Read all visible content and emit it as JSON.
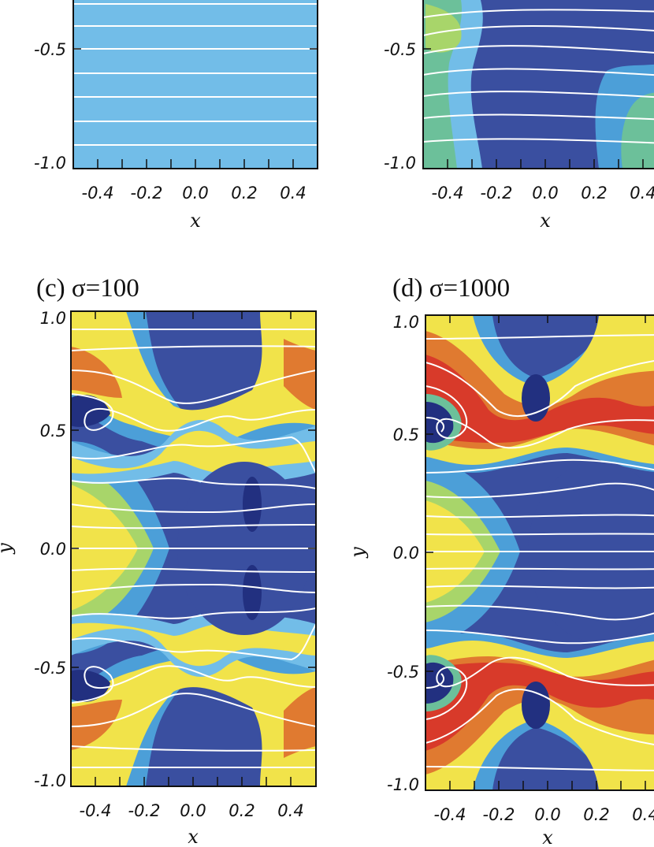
{
  "colors": {
    "field_scale": [
      "#3a4fa0",
      "#223080",
      "#4c9fd8",
      "#72bde8",
      "#6cc09a",
      "#a8d56a",
      "#f1e34a",
      "#f2b335",
      "#e07a30",
      "#d83a2a",
      "#b81c1c"
    ],
    "field_lines": "#ffffff",
    "frame": "#111111"
  },
  "chart_data": [
    {
      "type": "heatmap",
      "title": "",
      "xlabel": "x",
      "ylabel": "",
      "xlim": [
        -0.5,
        0.5
      ],
      "ylim": [
        -1.0,
        1.0
      ],
      "x_ticks": [
        "-0.4",
        "-0.2",
        "0.0",
        "0.2",
        "0.4"
      ],
      "y_ticks": [
        "-0.5",
        "-1.0"
      ],
      "field_lines": "horizontal, unperturbed",
      "field_level": "uniform"
    },
    {
      "type": "heatmap",
      "title": "",
      "xlabel": "x",
      "ylabel": "",
      "xlim": [
        -0.5,
        0.5
      ],
      "ylim": [
        -1.0,
        1.0
      ],
      "x_ticks": [
        "-0.4",
        "-0.2",
        "0.0",
        "0.2",
        "0.4"
      ],
      "y_ticks": [
        "-0.5",
        "-1.0"
      ],
      "field_lines": "gently perturbed"
    },
    {
      "type": "heatmap",
      "title": "(c) σ=100",
      "xlabel": "x",
      "ylabel": "y",
      "xlim": [
        -0.5,
        0.5
      ],
      "ylim": [
        -1.0,
        1.0
      ],
      "x_ticks": [
        "-0.4",
        "-0.2",
        "0.0",
        "0.2",
        "0.4"
      ],
      "y_ticks": [
        "1.0",
        "0.5",
        "0.0",
        "-0.5",
        "-1.0"
      ],
      "field_lines": "rolled-up vortices"
    },
    {
      "type": "heatmap",
      "title": "(d) σ=1000",
      "xlabel": "x",
      "ylabel": "y",
      "xlim": [
        -0.5,
        0.5
      ],
      "ylim": [
        -1.0,
        1.0
      ],
      "x_ticks": [
        "-0.4",
        "-0.2",
        "0.0",
        "0.2",
        "0.4"
      ],
      "y_ticks": [
        "1.0",
        "0.5",
        "0.0",
        "-0.5",
        "-1.0"
      ],
      "field_lines": "tightly rolled-up vortices"
    }
  ]
}
